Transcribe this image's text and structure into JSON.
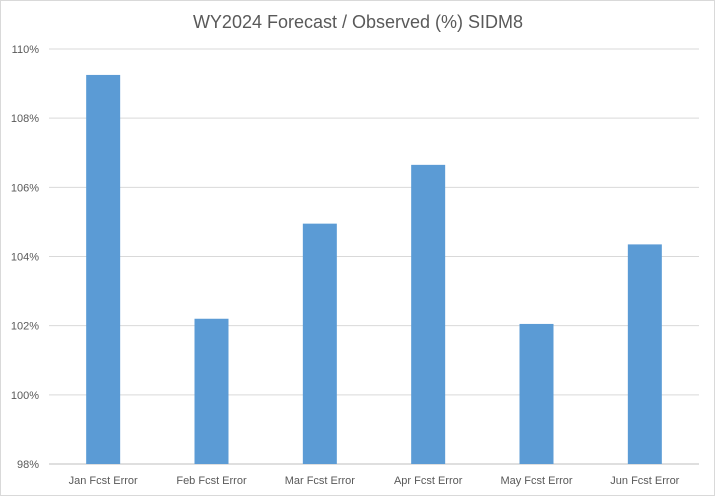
{
  "chart_data": {
    "type": "bar",
    "title": "WY2024 Forecast / Observed (%) SIDM8",
    "categories": [
      "Jan Fcst Error",
      "Feb Fcst Error",
      "Mar Fcst Error",
      "Apr Fcst Error",
      "May Fcst Error",
      "Jun Fcst Error"
    ],
    "values": [
      109.25,
      102.2,
      104.95,
      106.65,
      102.05,
      104.35
    ],
    "ylim": [
      98,
      110
    ],
    "yticks": [
      "98%",
      "100%",
      "102%",
      "104%",
      "106%",
      "108%",
      "110%"
    ],
    "ytick_values": [
      98,
      100,
      102,
      104,
      106,
      108,
      110
    ],
    "xlabel": "",
    "ylabel": "",
    "grid": true,
    "bar_color": "#5b9bd5"
  }
}
